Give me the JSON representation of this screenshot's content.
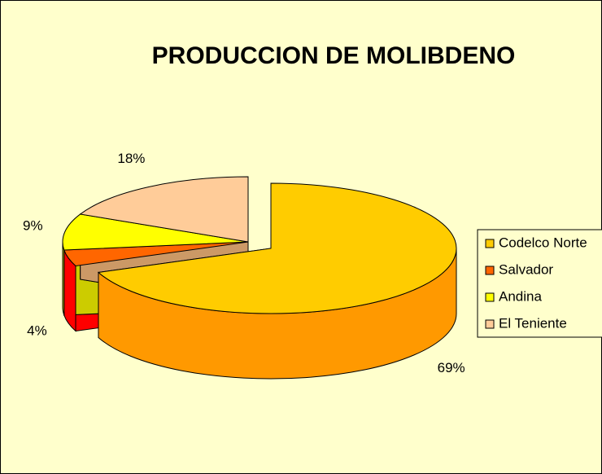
{
  "chart_data": {
    "type": "pie3d",
    "title": "PRODUCCION DE MOLIBDENO",
    "categories": [
      "Codelco Norte",
      "Salvador",
      "Andina",
      "El Teniente"
    ],
    "values": [
      69,
      4,
      9,
      18
    ],
    "value_labels": [
      "69%",
      "4%",
      "9%",
      "18%"
    ],
    "colors": [
      "#ffcc00",
      "#ff6600",
      "#ffff00",
      "#ffcc99"
    ],
    "side_colors": [
      "#ff9900",
      "#ff0000",
      "#cccc00",
      "#cc9966"
    ],
    "exploded": [
      true,
      false,
      false,
      false
    ],
    "legend": "right"
  }
}
